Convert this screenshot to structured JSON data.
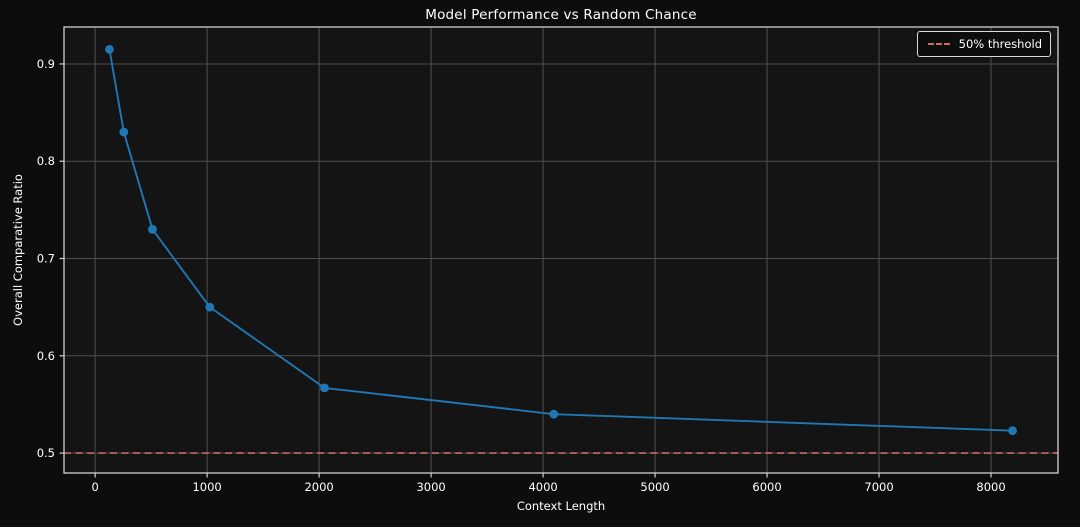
{
  "chart_data": {
    "type": "line",
    "title": "Model Performance vs Random Chance",
    "xlabel": "Context Length",
    "ylabel": "Overall Comparative Ratio",
    "x": [
      128,
      256,
      512,
      1024,
      2048,
      4096,
      8192
    ],
    "y": [
      0.915,
      0.83,
      0.73,
      0.65,
      0.567,
      0.54,
      0.523
    ],
    "threshold": {
      "value": 0.5,
      "label": "50% threshold"
    },
    "xticks": [
      0,
      1000,
      2000,
      3000,
      4000,
      5000,
      6000,
      7000,
      8000
    ],
    "yticks": [
      0.5,
      0.6,
      0.7,
      0.8,
      0.9
    ],
    "xlim": [
      -278,
      8598
    ],
    "ylim": [
      0.4795,
      0.938
    ],
    "grid": true,
    "legend_position": "upper right",
    "colors": {
      "line": "#1f77b4",
      "marker": "#1f77b4",
      "threshold": "#cd6868",
      "figure_background": "#0d0d0d",
      "plot_background": "#141414",
      "grid": "#4f4f4f",
      "spine": "#d0d0d0",
      "text": "#ffffff"
    }
  }
}
